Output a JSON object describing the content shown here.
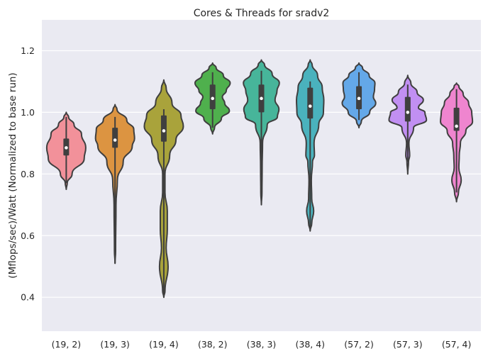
{
  "chart_data": {
    "type": "violin",
    "title": "Cores & Threads for sradv2",
    "xlabel": "",
    "ylabel": "(Mflops/sec)/Watt (Normalized to base run)",
    "ylim": [
      0.29,
      1.3
    ],
    "yticks": [
      "0.4",
      "0.6",
      "0.8",
      "1.0",
      "1.2"
    ],
    "grid": true,
    "legend": "none",
    "categories": [
      "(19, 2)",
      "(19, 3)",
      "(19, 4)",
      "(38, 2)",
      "(38, 3)",
      "(38, 4)",
      "(57, 2)",
      "(57, 3)",
      "(57, 4)"
    ],
    "colors": [
      "#f2919a",
      "#dc9441",
      "#a9a33b",
      "#4fb04d",
      "#47b59a",
      "#4ab2bd",
      "#64a8e8",
      "#c18ff2",
      "#ef85cf"
    ],
    "series": [
      {
        "min": 0.77,
        "q1": 0.86,
        "median": 0.885,
        "q3": 0.915,
        "max": 0.985,
        "profile": [
          [
            0.75,
            0
          ],
          [
            0.77,
            0.05
          ],
          [
            0.8,
            0.3
          ],
          [
            0.85,
            0.92
          ],
          [
            0.885,
            1.0
          ],
          [
            0.93,
            0.78
          ],
          [
            0.96,
            0.4
          ],
          [
            0.985,
            0.12
          ],
          [
            1.0,
            0
          ]
        ]
      },
      {
        "min": 0.51,
        "q1": 0.885,
        "median": 0.91,
        "q3": 0.95,
        "max": 0.985,
        "profile": [
          [
            0.51,
            0
          ],
          [
            0.55,
            0.03
          ],
          [
            0.7,
            0.05
          ],
          [
            0.78,
            0.12
          ],
          [
            0.84,
            0.42
          ],
          [
            0.89,
            0.88
          ],
          [
            0.915,
            1.0
          ],
          [
            0.945,
            0.96
          ],
          [
            0.975,
            0.6
          ],
          [
            1.01,
            0.1
          ],
          [
            1.025,
            0
          ]
        ]
      },
      {
        "min": 0.4,
        "q1": 0.905,
        "median": 0.94,
        "q3": 0.99,
        "max": 1.01,
        "profile": [
          [
            0.4,
            0
          ],
          [
            0.42,
            0.06
          ],
          [
            0.5,
            0.22
          ],
          [
            0.56,
            0.12
          ],
          [
            0.62,
            0.18
          ],
          [
            0.68,
            0.18
          ],
          [
            0.74,
            0.06
          ],
          [
            0.8,
            0.06
          ],
          [
            0.86,
            0.3
          ],
          [
            0.91,
            0.62
          ],
          [
            0.955,
            1.0
          ],
          [
            0.99,
            0.88
          ],
          [
            1.03,
            0.42
          ],
          [
            1.08,
            0.12
          ],
          [
            1.105,
            0
          ]
        ]
      },
      {
        "min": 0.95,
        "q1": 1.01,
        "median": 1.045,
        "q3": 1.09,
        "max": 1.13,
        "profile": [
          [
            0.93,
            0
          ],
          [
            0.95,
            0.1
          ],
          [
            0.98,
            0.45
          ],
          [
            1.005,
            0.86
          ],
          [
            1.03,
            0.62
          ],
          [
            1.05,
            0.5
          ],
          [
            1.07,
            0.7
          ],
          [
            1.095,
            0.9
          ],
          [
            1.12,
            0.55
          ],
          [
            1.145,
            0.18
          ],
          [
            1.16,
            0
          ]
        ]
      },
      {
        "min": 0.7,
        "q1": 1.0,
        "median": 1.045,
        "q3": 1.09,
        "max": 1.135,
        "profile": [
          [
            0.7,
            0
          ],
          [
            0.74,
            0.03
          ],
          [
            0.82,
            0.04
          ],
          [
            0.9,
            0.06
          ],
          [
            0.96,
            0.3
          ],
          [
            0.985,
            0.82
          ],
          [
            1.01,
            0.9
          ],
          [
            1.04,
            0.7
          ],
          [
            1.07,
            0.8
          ],
          [
            1.095,
            0.92
          ],
          [
            1.125,
            0.55
          ],
          [
            1.155,
            0.16
          ],
          [
            1.17,
            0
          ]
        ]
      },
      {
        "min": 0.62,
        "q1": 0.98,
        "median": 1.02,
        "q3": 1.08,
        "max": 1.1,
        "profile": [
          [
            0.615,
            0
          ],
          [
            0.64,
            0.08
          ],
          [
            0.68,
            0.18
          ],
          [
            0.72,
            0.08
          ],
          [
            0.78,
            0.06
          ],
          [
            0.84,
            0.12
          ],
          [
            0.86,
            0.22
          ],
          [
            0.9,
            0.2
          ],
          [
            0.96,
            0.44
          ],
          [
            1.0,
            0.68
          ],
          [
            1.04,
            0.7
          ],
          [
            1.08,
            0.62
          ],
          [
            1.12,
            0.38
          ],
          [
            1.155,
            0.1
          ],
          [
            1.17,
            0
          ]
        ]
      },
      {
        "min": 0.975,
        "q1": 1.01,
        "median": 1.045,
        "q3": 1.085,
        "max": 1.13,
        "profile": [
          [
            0.95,
            0
          ],
          [
            0.97,
            0.12
          ],
          [
            1.0,
            0.55
          ],
          [
            1.03,
            0.86
          ],
          [
            1.05,
            0.74
          ],
          [
            1.075,
            0.8
          ],
          [
            1.095,
            0.82
          ],
          [
            1.12,
            0.52
          ],
          [
            1.145,
            0.18
          ],
          [
            1.16,
            0
          ]
        ]
      },
      {
        "min": 0.84,
        "q1": 0.97,
        "median": 1.0,
        "q3": 1.05,
        "max": 1.09,
        "profile": [
          [
            0.8,
            0
          ],
          [
            0.84,
            0.04
          ],
          [
            0.86,
            0.1
          ],
          [
            0.9,
            0.06
          ],
          [
            0.95,
            0.3
          ],
          [
            0.975,
            0.96
          ],
          [
            1.0,
            0.88
          ],
          [
            1.015,
            0.55
          ],
          [
            1.04,
            0.8
          ],
          [
            1.065,
            0.48
          ],
          [
            1.095,
            0.16
          ],
          [
            1.12,
            0
          ]
        ]
      },
      {
        "min": 0.74,
        "q1": 0.94,
        "median": 0.955,
        "q3": 1.015,
        "max": 1.075,
        "profile": [
          [
            0.71,
            0
          ],
          [
            0.74,
            0.1
          ],
          [
            0.78,
            0.24
          ],
          [
            0.82,
            0.12
          ],
          [
            0.86,
            0.14
          ],
          [
            0.9,
            0.2
          ],
          [
            0.94,
            0.48
          ],
          [
            0.97,
            0.82
          ],
          [
            1.0,
            0.78
          ],
          [
            1.03,
            0.62
          ],
          [
            1.06,
            0.34
          ],
          [
            1.085,
            0.12
          ],
          [
            1.095,
            0
          ]
        ]
      }
    ]
  }
}
